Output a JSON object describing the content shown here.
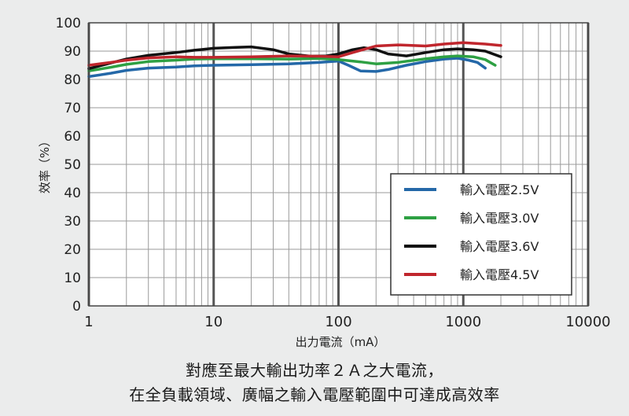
{
  "chart_data": {
    "type": "line",
    "title": "",
    "xlabel": "出力電流（mA）",
    "ylabel": "效率（%）",
    "xscale": "log",
    "xlim": [
      1,
      10000
    ],
    "ylim": [
      0,
      100
    ],
    "xticks": [
      1,
      10,
      100,
      1000,
      10000
    ],
    "xtick_labels": [
      "1",
      "10",
      "100",
      "1000",
      "10000"
    ],
    "yticks": [
      0,
      10,
      20,
      30,
      40,
      50,
      60,
      70,
      80,
      90,
      100
    ],
    "ytick_labels": [
      "0",
      "10",
      "20",
      "30",
      "40",
      "50",
      "60",
      "70",
      "80",
      "90",
      "100"
    ],
    "grid": true,
    "legend_position": "bottom-right",
    "series": [
      {
        "name": "輸入電壓2.5V",
        "color": "#2468a8",
        "points": [
          [
            1,
            81
          ],
          [
            1.5,
            82.2
          ],
          [
            2,
            83.2
          ],
          [
            3,
            84
          ],
          [
            5,
            84.4
          ],
          [
            7,
            84.8
          ],
          [
            10,
            85
          ],
          [
            20,
            85.2
          ],
          [
            40,
            85.5
          ],
          [
            70,
            86
          ],
          [
            100,
            86.5
          ],
          [
            120,
            85
          ],
          [
            150,
            83
          ],
          [
            200,
            82.8
          ],
          [
            250,
            83.5
          ],
          [
            350,
            85
          ],
          [
            500,
            86.3
          ],
          [
            700,
            87.2
          ],
          [
            900,
            87.5
          ],
          [
            1100,
            86.8
          ],
          [
            1300,
            86
          ],
          [
            1500,
            84
          ]
        ]
      },
      {
        "name": "輸入電壓3.0V",
        "color": "#2ea043",
        "points": [
          [
            1,
            83
          ],
          [
            1.5,
            84.3
          ],
          [
            2,
            85.3
          ],
          [
            3,
            86.3
          ],
          [
            5,
            86.8
          ],
          [
            7,
            87.2
          ],
          [
            10,
            87.3
          ],
          [
            20,
            87.3
          ],
          [
            40,
            87.2
          ],
          [
            70,
            87.4
          ],
          [
            100,
            87
          ],
          [
            150,
            86.2
          ],
          [
            200,
            85.5
          ],
          [
            300,
            86
          ],
          [
            500,
            87.3
          ],
          [
            700,
            88
          ],
          [
            900,
            88.3
          ],
          [
            1200,
            88
          ],
          [
            1500,
            87
          ],
          [
            1800,
            85
          ]
        ]
      },
      {
        "name": "輸入電壓3.6V",
        "color": "#111111",
        "points": [
          [
            1,
            83.8
          ],
          [
            1.5,
            85.8
          ],
          [
            2,
            87.2
          ],
          [
            3,
            88.5
          ],
          [
            5,
            89.5
          ],
          [
            7,
            90.3
          ],
          [
            10,
            91
          ],
          [
            15,
            91.3
          ],
          [
            20,
            91.5
          ],
          [
            30,
            90.5
          ],
          [
            40,
            89
          ],
          [
            60,
            88.2
          ],
          [
            80,
            88.3
          ],
          [
            100,
            89
          ],
          [
            130,
            90.5
          ],
          [
            160,
            91.2
          ],
          [
            200,
            90.5
          ],
          [
            250,
            89
          ],
          [
            350,
            88.3
          ],
          [
            500,
            89.5
          ],
          [
            700,
            90.5
          ],
          [
            900,
            90.8
          ],
          [
            1200,
            90.5
          ],
          [
            1500,
            90
          ],
          [
            2000,
            88
          ]
        ]
      },
      {
        "name": "輸入電壓4.5V",
        "color": "#c0262d",
        "points": [
          [
            1,
            85
          ],
          [
            1.5,
            86
          ],
          [
            2,
            86.8
          ],
          [
            3,
            87.6
          ],
          [
            5,
            88
          ],
          [
            7,
            87.8
          ],
          [
            10,
            87.8
          ],
          [
            20,
            88
          ],
          [
            40,
            88.3
          ],
          [
            70,
            88.2
          ],
          [
            100,
            88
          ],
          [
            130,
            89.5
          ],
          [
            200,
            91.8
          ],
          [
            300,
            92.2
          ],
          [
            500,
            91.8
          ],
          [
            700,
            92.5
          ],
          [
            1000,
            93
          ],
          [
            1500,
            92.5
          ],
          [
            2000,
            92
          ]
        ]
      }
    ]
  },
  "caption": {
    "line1": "對應至最大輸出功率２Ａ之大電流，",
    "line2": "在全負載領域、廣幅之輸入電壓範圍中可達成高效率"
  }
}
